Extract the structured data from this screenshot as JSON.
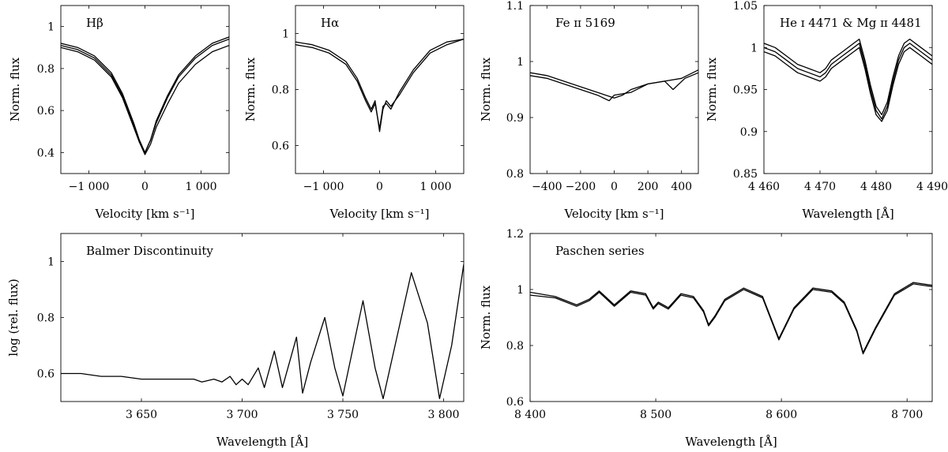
{
  "chart_data": [
    {
      "type": "line",
      "title": "Hβ",
      "xlabel": "Velocity [km s⁻¹]",
      "ylabel": "Norm. flux",
      "xlim": [
        -1500,
        1500
      ],
      "ylim": [
        0.3,
        1.1
      ],
      "xticks": [
        -1000,
        0,
        1000
      ],
      "xtick_labels": [
        "−1 000",
        "0",
        "1 000"
      ],
      "yticks": [
        0.4,
        0.6,
        0.8,
        1.0
      ],
      "ytick_labels": [
        "0.4",
        "0.6",
        "0.8",
        "1"
      ],
      "series": [
        {
          "x": [
            -1500,
            -1200,
            -900,
            -600,
            -400,
            -200,
            -100,
            0,
            100,
            200,
            400,
            600,
            900,
            1200,
            1500
          ],
          "y": [
            0.91,
            0.89,
            0.85,
            0.77,
            0.67,
            0.53,
            0.45,
            0.39,
            0.44,
            0.52,
            0.63,
            0.73,
            0.82,
            0.88,
            0.91
          ]
        },
        {
          "x": [
            -1500,
            -1200,
            -900,
            -600,
            -400,
            -200,
            -100,
            0,
            100,
            200,
            400,
            600,
            900,
            1200,
            1500
          ],
          "y": [
            0.9,
            0.88,
            0.84,
            0.76,
            0.66,
            0.52,
            0.45,
            0.4,
            0.46,
            0.55,
            0.67,
            0.77,
            0.86,
            0.92,
            0.95
          ]
        },
        {
          "x": [
            -1500,
            -1200,
            -900,
            -600,
            -400,
            -200,
            -100,
            0,
            100,
            200,
            400,
            600,
            900,
            1200,
            1500
          ],
          "y": [
            0.92,
            0.9,
            0.86,
            0.78,
            0.68,
            0.54,
            0.46,
            0.4,
            0.46,
            0.54,
            0.66,
            0.76,
            0.85,
            0.91,
            0.94
          ]
        }
      ]
    },
    {
      "type": "line",
      "title": "Hα",
      "xlabel": "Velocity [km s⁻¹]",
      "ylabel": "Norm. flux",
      "xlim": [
        -1500,
        1500
      ],
      "ylim": [
        0.5,
        1.1
      ],
      "xticks": [
        -1000,
        0,
        1000
      ],
      "xtick_labels": [
        "−1 000",
        "0",
        "1 000"
      ],
      "yticks": [
        0.6,
        0.8,
        1.0
      ],
      "ytick_labels": [
        "0.6",
        "0.8",
        "1"
      ],
      "series": [
        {
          "x": [
            -1500,
            -1200,
            -900,
            -600,
            -400,
            -250,
            -150,
            -80,
            0,
            60,
            120,
            200,
            350,
            600,
            900,
            1200,
            1500
          ],
          "y": [
            0.97,
            0.96,
            0.94,
            0.9,
            0.84,
            0.77,
            0.73,
            0.76,
            0.65,
            0.73,
            0.76,
            0.74,
            0.78,
            0.86,
            0.93,
            0.96,
            0.98
          ]
        },
        {
          "x": [
            -1500,
            -1200,
            -900,
            -600,
            -400,
            -250,
            -150,
            -80,
            0,
            60,
            120,
            200,
            350,
            600,
            900,
            1200,
            1500
          ],
          "y": [
            0.96,
            0.95,
            0.93,
            0.89,
            0.83,
            0.76,
            0.72,
            0.75,
            0.66,
            0.74,
            0.75,
            0.73,
            0.79,
            0.87,
            0.94,
            0.97,
            0.98
          ]
        }
      ]
    },
    {
      "type": "line",
      "title": "Fe ɪɪ 5169",
      "xlabel": "Velocity [km s⁻¹]",
      "ylabel": "Norm. flux",
      "xlim": [
        -500,
        500
      ],
      "ylim": [
        0.8,
        1.1
      ],
      "xticks": [
        -400,
        -200,
        0,
        200,
        400
      ],
      "xtick_labels": [
        "−400",
        "−200",
        "0",
        "200",
        "400"
      ],
      "yticks": [
        0.8,
        0.9,
        1.0,
        1.1
      ],
      "ytick_labels": [
        "0.8",
        "0.9",
        "1",
        "1.1"
      ],
      "series": [
        {
          "x": [
            -500,
            -400,
            -300,
            -200,
            -100,
            0,
            50,
            100,
            200,
            300,
            400,
            500
          ],
          "y": [
            0.98,
            0.975,
            0.965,
            0.955,
            0.945,
            0.935,
            0.94,
            0.95,
            0.96,
            0.965,
            0.97,
            0.985
          ]
        },
        {
          "x": [
            -500,
            -400,
            -300,
            -200,
            -100,
            -30,
            0,
            100,
            200,
            300,
            350,
            420,
            500
          ],
          "y": [
            0.975,
            0.97,
            0.96,
            0.95,
            0.94,
            0.93,
            0.94,
            0.945,
            0.96,
            0.965,
            0.95,
            0.97,
            0.98
          ]
        }
      ]
    },
    {
      "type": "line",
      "title": "He ɪ 4471 & Mg ɪɪ 4481",
      "xlabel": "Wavelength [Å]",
      "ylabel": "Norm. flux",
      "xlim": [
        4460,
        4490
      ],
      "ylim": [
        0.85,
        1.05
      ],
      "xticks": [
        4460,
        4470,
        4480,
        4490
      ],
      "xtick_labels": [
        "4 460",
        "4 470",
        "4 480",
        "4 490"
      ],
      "yticks": [
        0.85,
        0.9,
        0.95,
        1.0,
        1.05
      ],
      "ytick_labels": [
        "0.85",
        "0.9",
        "0.95",
        "1",
        "1.05"
      ],
      "series": [
        {
          "x": [
            4460,
            4462,
            4464,
            4466,
            4468,
            4470,
            4471,
            4472,
            4474,
            4476,
            4477,
            4478,
            4479,
            4480,
            4481,
            4482,
            4483,
            4484,
            4485,
            4486,
            4488,
            4490
          ],
          "y": [
            1.0,
            0.995,
            0.985,
            0.975,
            0.97,
            0.965,
            0.97,
            0.98,
            0.99,
            1.0,
            1.005,
            0.98,
            0.95,
            0.925,
            0.915,
            0.93,
            0.96,
            0.985,
            1.0,
            1.005,
            0.995,
            0.985
          ]
        },
        {
          "x": [
            4460,
            4462,
            4464,
            4466,
            4468,
            4470,
            4471,
            4472,
            4474,
            4476,
            4477,
            4478,
            4479,
            4480,
            4481,
            4482,
            4483,
            4484,
            4485,
            4486,
            4488,
            4490
          ],
          "y": [
            1.005,
            1.0,
            0.99,
            0.98,
            0.975,
            0.97,
            0.975,
            0.985,
            0.995,
            1.005,
            1.01,
            0.985,
            0.955,
            0.93,
            0.92,
            0.935,
            0.965,
            0.99,
            1.005,
            1.01,
            1.0,
            0.99
          ]
        },
        {
          "x": [
            4460,
            4462,
            4464,
            4466,
            4468,
            4470,
            4471,
            4472,
            4474,
            4476,
            4477,
            4478,
            4479,
            4480,
            4481,
            4482,
            4483,
            4484,
            4485,
            4486,
            4488,
            4490
          ],
          "y": [
            0.995,
            0.99,
            0.98,
            0.97,
            0.965,
            0.96,
            0.965,
            0.975,
            0.985,
            0.995,
            1.0,
            0.975,
            0.945,
            0.92,
            0.912,
            0.925,
            0.955,
            0.98,
            0.995,
            1.0,
            0.99,
            0.98
          ]
        }
      ]
    },
    {
      "type": "line",
      "title": "Balmer Discontinuity",
      "xlabel": "Wavelength [Å]",
      "ylabel": "log (rel. flux)",
      "xlim": [
        3610,
        3810
      ],
      "ylim": [
        0.5,
        1.1
      ],
      "xticks": [
        3650,
        3700,
        3750,
        3800
      ],
      "xtick_labels": [
        "3 650",
        "3 700",
        "3 750",
        "3 800"
      ],
      "yticks": [
        0.6,
        0.8,
        1.0
      ],
      "ytick_labels": [
        "0.6",
        "0.8",
        "1"
      ],
      "series": [
        {
          "x": [
            3610,
            3620,
            3630,
            3640,
            3650,
            3660,
            3670,
            3676,
            3680,
            3686,
            3690,
            3694,
            3697,
            3700,
            3703,
            3708,
            3711,
            3716,
            3720,
            3727,
            3730,
            3734,
            3741,
            3746,
            3750,
            3760,
            3766,
            3770,
            3784,
            3792,
            3798,
            3804,
            3810
          ],
          "y": [
            0.6,
            0.6,
            0.59,
            0.59,
            0.58,
            0.58,
            0.58,
            0.58,
            0.57,
            0.58,
            0.57,
            0.59,
            0.56,
            0.58,
            0.56,
            0.62,
            0.55,
            0.68,
            0.55,
            0.73,
            0.53,
            0.64,
            0.8,
            0.62,
            0.52,
            0.86,
            0.62,
            0.51,
            0.96,
            0.78,
            0.51,
            0.7,
            0.99
          ]
        }
      ]
    },
    {
      "type": "line",
      "title": "Paschen series",
      "xlabel": "Wavelength [Å]",
      "ylabel": "Norm. flux",
      "xlim": [
        8400,
        8720
      ],
      "ylim": [
        0.6,
        1.2
      ],
      "xticks": [
        8400,
        8500,
        8600,
        8700
      ],
      "xtick_labels": [
        "8 400",
        "8 500",
        "8 600",
        "8 700"
      ],
      "yticks": [
        0.6,
        0.8,
        1.0,
        1.2
      ],
      "ytick_labels": [
        "0.6",
        "0.8",
        "1",
        "1.2"
      ],
      "series": [
        {
          "x": [
            8400,
            8420,
            8437,
            8447,
            8455,
            8467,
            8480,
            8492,
            8498,
            8502,
            8510,
            8520,
            8530,
            8538,
            8542,
            8547,
            8555,
            8570,
            8585,
            8598,
            8610,
            8625,
            8640,
            8650,
            8660,
            8665,
            8675,
            8690,
            8705,
            8720
          ],
          "y": [
            0.98,
            0.97,
            0.94,
            0.96,
            0.99,
            0.94,
            0.99,
            0.98,
            0.93,
            0.95,
            0.93,
            0.98,
            0.97,
            0.92,
            0.87,
            0.9,
            0.96,
            1.0,
            0.97,
            0.82,
            0.93,
            1.0,
            0.99,
            0.95,
            0.85,
            0.77,
            0.86,
            0.98,
            1.02,
            1.01
          ]
        },
        {
          "x": [
            8400,
            8420,
            8437,
            8447,
            8455,
            8467,
            8480,
            8492,
            8498,
            8502,
            8510,
            8520,
            8530,
            8538,
            8542,
            8547,
            8555,
            8570,
            8585,
            8598,
            8610,
            8625,
            8640,
            8650,
            8660,
            8665,
            8675,
            8690,
            8705,
            8720
          ],
          "y": [
            0.99,
            0.975,
            0.945,
            0.965,
            0.995,
            0.945,
            0.995,
            0.985,
            0.935,
            0.955,
            0.935,
            0.985,
            0.975,
            0.925,
            0.875,
            0.905,
            0.965,
            1.005,
            0.975,
            0.825,
            0.935,
            1.005,
            0.995,
            0.955,
            0.855,
            0.775,
            0.865,
            0.985,
            1.025,
            1.015
          ]
        }
      ]
    }
  ]
}
